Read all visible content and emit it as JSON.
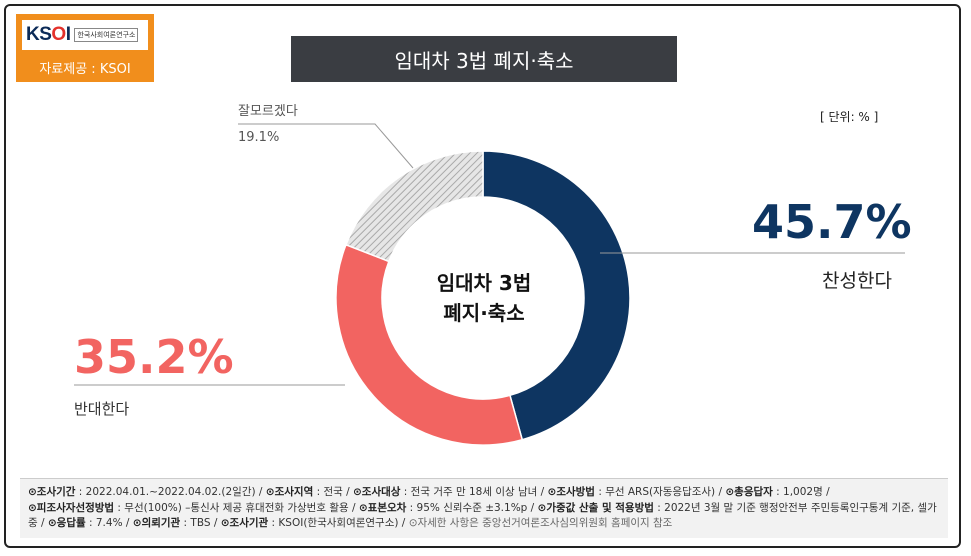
{
  "logo": {
    "mark_k": "K",
    "mark_so": "S",
    "mark_o": "O",
    "mark_i": "I",
    "org": "한국사회여론연구소"
  },
  "source": "자료제공 : KSOI",
  "title": "임대차 3법 폐지·축소",
  "unit": "[ 단위: % ]",
  "center": {
    "line1": "임대차 3법",
    "line2": "폐지·축소"
  },
  "colors": {
    "agree": "#0e3561",
    "oppose": "#f26461",
    "unknown": "#cfcfcf"
  },
  "chart_data": {
    "type": "pie",
    "title": "임대차 3법 폐지·축소",
    "categories": [
      "찬성한다",
      "반대한다",
      "잘모르겠다"
    ],
    "values": [
      45.7,
      35.2,
      19.1
    ],
    "value_labels": [
      "45.7%",
      "35.2%",
      "19.1%"
    ],
    "unit": "%"
  },
  "footer": {
    "p1_label": "⊙조사기간",
    "p1_val": " : 2022.04.01.~2022.04.02.(2일간)  / ",
    "p2_label": "⊙조사지역",
    "p2_val": " : 전국 / ",
    "p3_label": "⊙조사대상",
    "p3_val": " : 전국 거주 만 18세 이상 남녀 / ",
    "p4_label": "⊙조사방법",
    "p4_val": " : 무선 ARS(자동응답조사) / ",
    "p5_label": "⊙총응답자",
    "p5_val": " : 1,002명 / ",
    "p6_label": "⊙피조사자선정방법",
    "p6_val": " : 무선(100%) –통신사 제공 휴대전화 가상번호 활용 / ",
    "p7_label": "⊙표본오차",
    "p7_val": " : 95% 신뢰수준 ±3.1%p / ",
    "p8_label": "⊙가중값 산출 및 적용방법",
    "p8_val": " : 2022년 3월 말 기준 행정안전부 주민등록인구통계 기준, 셀가중 / ",
    "p9_label": "⊙응답률",
    "p9_val": " : 7.4% / ",
    "p10_label": "⊙의뢰기관",
    "p10_val": " : TBS / ",
    "p11_label": "⊙조사기관",
    "p11_val": " : KSOI(한국사회여론연구소) / ",
    "p12": "⊙자세한 사항은 중앙선거여론조사심의위원회 홈페이지 참조"
  }
}
